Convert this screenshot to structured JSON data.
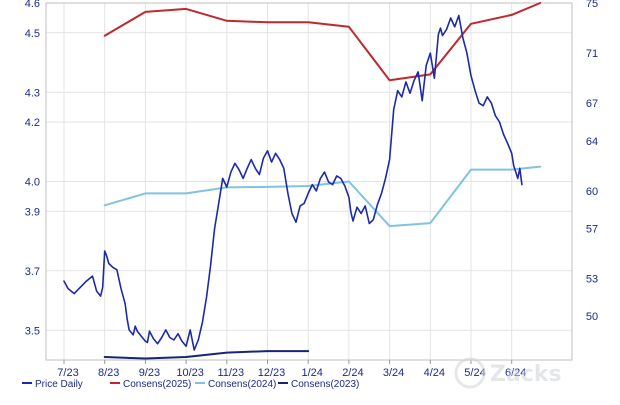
{
  "chart_data": {
    "type": "line",
    "x_tick_labels": [
      "7/23",
      "8/23",
      "9/23",
      "10/23",
      "11/23",
      "12/23",
      "1/24",
      "2/24",
      "3/24",
      "4/24",
      "5/24",
      "6/24"
    ],
    "left_axis": {
      "ticks": [
        "4.6",
        "4.5",
        "4.3",
        "4.2",
        "4.0",
        "3.9",
        "3.7",
        "3.5"
      ],
      "range": [
        3.4,
        4.6
      ]
    },
    "right_axis": {
      "ticks": [
        "75",
        "71",
        "67",
        "64",
        "60",
        "57",
        "53",
        "50"
      ],
      "range": [
        46.5,
        75
      ]
    },
    "grid": true,
    "legend_position": "bottom-left",
    "series": [
      {
        "name": "Price Daily",
        "axis": "right",
        "color": "#1c2aa8",
        "x": [
          0.0,
          0.1,
          0.25,
          0.4,
          0.55,
          0.7,
          0.8,
          0.9,
          0.95,
          1.0,
          1.05,
          1.1,
          1.2,
          1.3,
          1.4,
          1.5,
          1.55,
          1.6,
          1.7,
          1.75,
          1.8,
          1.9,
          2.0,
          2.05,
          2.1,
          2.2,
          2.3,
          2.4,
          2.5,
          2.6,
          2.7,
          2.8,
          2.9,
          3.0,
          3.1,
          3.2,
          3.3,
          3.4,
          3.5,
          3.6,
          3.7,
          3.8,
          3.9,
          4.0,
          4.1,
          4.2,
          4.3,
          4.4,
          4.5,
          4.6,
          4.7,
          4.8,
          4.9,
          5.0,
          5.1,
          5.2,
          5.3,
          5.4,
          5.5,
          5.6,
          5.7,
          5.8,
          5.9,
          6.0,
          6.1,
          6.2,
          6.3,
          6.4,
          6.5,
          6.6,
          6.7,
          6.8,
          6.9,
          7.0,
          7.05,
          7.1,
          7.2,
          7.3,
          7.4,
          7.5,
          7.6,
          7.7,
          7.8,
          7.9,
          8.0,
          8.1,
          8.2,
          8.3,
          8.4,
          8.5,
          8.6,
          8.7,
          8.8,
          8.9,
          9.0,
          9.1,
          9.2,
          9.25,
          9.3,
          9.4,
          9.5,
          9.6,
          9.7,
          9.8,
          9.9,
          10.0,
          10.1,
          10.2,
          10.3,
          10.4,
          10.5,
          10.6,
          10.7,
          10.8,
          10.9,
          11.0,
          11.05,
          11.1,
          11.15,
          11.2,
          11.25
        ],
        "y": [
          52.8,
          52.2,
          51.8,
          52.3,
          52.8,
          53.2,
          52.0,
          51.6,
          52.3,
          55.2,
          54.8,
          54.2,
          53.9,
          53.7,
          52.2,
          51.0,
          49.8,
          48.9,
          48.5,
          49.2,
          48.8,
          48.4,
          48.0,
          47.9,
          48.8,
          48.2,
          47.8,
          48.3,
          48.9,
          48.3,
          48.1,
          48.6,
          48.0,
          47.6,
          48.9,
          47.3,
          48.1,
          49.5,
          51.5,
          54.0,
          57.0,
          59.0,
          61.0,
          60.3,
          61.5,
          62.2,
          61.7,
          61.0,
          61.8,
          62.5,
          61.8,
          61.3,
          62.6,
          63.2,
          62.3,
          63.0,
          62.5,
          61.8,
          59.8,
          58.2,
          57.5,
          58.8,
          59.0,
          59.8,
          60.5,
          60.0,
          61.0,
          61.5,
          60.7,
          60.5,
          61.2,
          61.0,
          60.4,
          59.5,
          58.3,
          57.6,
          58.7,
          58.2,
          58.8,
          57.4,
          57.7,
          58.9,
          59.8,
          61.0,
          62.5,
          66.5,
          68.0,
          67.5,
          68.7,
          67.8,
          68.8,
          69.5,
          67.2,
          70.0,
          71.0,
          69.0,
          72.5,
          73.0,
          72.4,
          72.9,
          73.8,
          73.1,
          74.0,
          72.2,
          71.0,
          69.2,
          68.0,
          67.0,
          66.8,
          67.5,
          67.0,
          66.0,
          65.5,
          64.5,
          63.8,
          63.0,
          62.0,
          61.5,
          61.0,
          61.8,
          60.5
        ]
      },
      {
        "name": "Consens(2025)",
        "axis": "left",
        "color": "#c0282d",
        "x": [
          1.0,
          2.0,
          3.0,
          4.0,
          5.0,
          6.0,
          7.0,
          8.0,
          9.0,
          10.0,
          11.0,
          11.7
        ],
        "y": [
          4.49,
          4.57,
          4.58,
          4.54,
          4.535,
          4.535,
          4.52,
          4.34,
          4.36,
          4.53,
          4.56,
          4.6
        ]
      },
      {
        "name": "Consens(2024)",
        "axis": "left",
        "color": "#7ec4e2",
        "x": [
          1.0,
          2.0,
          3.0,
          4.0,
          5.0,
          6.0,
          7.0,
          8.0,
          9.0,
          10.0,
          11.0,
          11.7
        ],
        "y": [
          3.92,
          3.96,
          3.96,
          3.98,
          3.982,
          3.985,
          4.0,
          3.85,
          3.86,
          4.04,
          4.04,
          4.05
        ]
      },
      {
        "name": "Consens(2023)",
        "axis": "left",
        "color": "#1a2477",
        "x": [
          1.0,
          2.0,
          3.0,
          4.0,
          5.0,
          6.0
        ],
        "y": [
          3.41,
          3.405,
          3.41,
          3.425,
          3.43,
          3.43
        ]
      }
    ]
  },
  "watermark": "Zacks"
}
